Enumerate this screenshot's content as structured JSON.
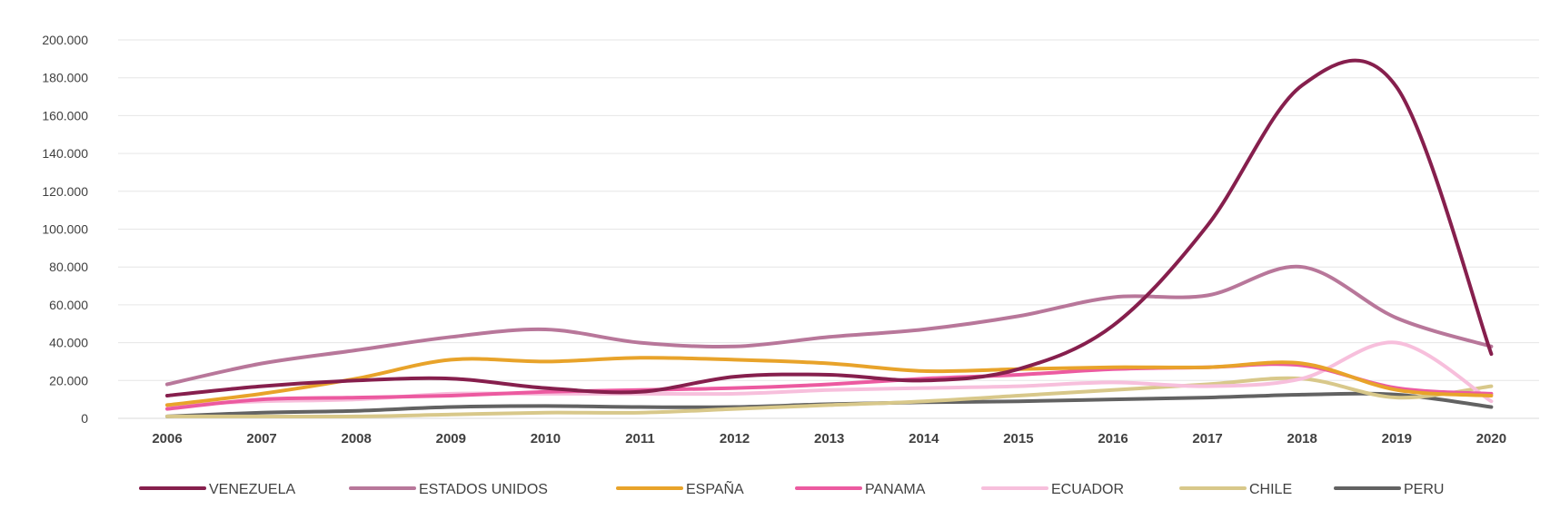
{
  "chart_data": {
    "type": "line",
    "title": "",
    "xlabel": "",
    "ylabel": "",
    "categories": [
      "2006",
      "2007",
      "2008",
      "2009",
      "2010",
      "2011",
      "2012",
      "2013",
      "2014",
      "2015",
      "2016",
      "2017",
      "2018",
      "2019",
      "2020"
    ],
    "ylim": [
      0,
      200000
    ],
    "yticks": [
      0,
      20000,
      40000,
      60000,
      80000,
      100000,
      120000,
      140000,
      160000,
      180000,
      200000
    ],
    "ytick_labels": [
      "0",
      "20.000",
      "40.000",
      "60.000",
      "80.000",
      "100.000",
      "120.000",
      "140.000",
      "160.000",
      "180.000",
      "200.000"
    ],
    "grid": true,
    "smooth": true,
    "legend_position": "bottom",
    "series": [
      {
        "name": "VENEZUELA",
        "color": "#861f4d",
        "values": [
          12000,
          17000,
          20000,
          21000,
          16000,
          14000,
          22000,
          23000,
          20000,
          26000,
          49000,
          102000,
          176000,
          175000,
          34000
        ]
      },
      {
        "name": "ESTADOS UNIDOS",
        "color": "#b8779a",
        "values": [
          18000,
          29000,
          36000,
          43000,
          47000,
          40000,
          38000,
          43000,
          47000,
          54000,
          64000,
          65000,
          80000,
          53000,
          38000
        ]
      },
      {
        "name": "ESPAÑA",
        "color": "#e8a32a",
        "values": [
          7000,
          13000,
          21000,
          31000,
          30000,
          32000,
          31000,
          29000,
          25000,
          26000,
          27000,
          27000,
          29000,
          15000,
          12000
        ]
      },
      {
        "name": "PANAMA",
        "color": "#ec5aa0",
        "values": [
          5000,
          10000,
          11000,
          12000,
          14000,
          15000,
          16000,
          18000,
          21000,
          23000,
          26000,
          27000,
          28000,
          16000,
          13000
        ]
      },
      {
        "name": "ECUADOR",
        "color": "#f7bfdc",
        "values": [
          7000,
          9000,
          10000,
          13000,
          13000,
          13000,
          13000,
          15000,
          16000,
          17000,
          19000,
          17000,
          21000,
          40000,
          9000
        ]
      },
      {
        "name": "CHILE",
        "color": "#d8c88a",
        "values": [
          1000,
          1000,
          1000,
          2000,
          3000,
          3000,
          5000,
          7000,
          9000,
          12000,
          15000,
          18000,
          21000,
          11000,
          17000
        ]
      },
      {
        "name": "PERU",
        "color": "#626262",
        "values": [
          1000,
          3000,
          4000,
          6000,
          6500,
          6000,
          6000,
          7500,
          8500,
          9000,
          10000,
          11000,
          12500,
          12500,
          6000
        ]
      }
    ]
  }
}
